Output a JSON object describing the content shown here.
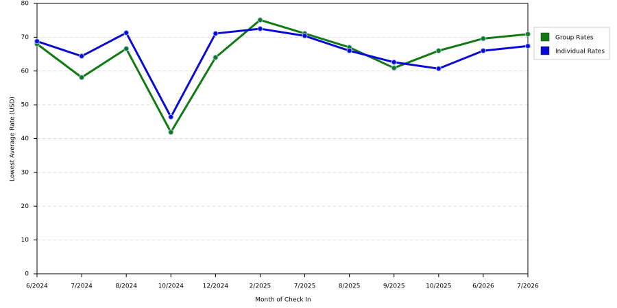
{
  "chart_data": {
    "type": "line",
    "x_label": "Month of Check In",
    "y_label": "Lowest Average Rate (USD)",
    "categories": [
      "6/2024",
      "7/2024",
      "8/2024",
      "10/2024",
      "12/2024",
      "2/2025",
      "7/2025",
      "8/2025",
      "9/2025",
      "10/2025",
      "6/2026",
      "7/2026"
    ],
    "series": [
      {
        "name": "Group Rates",
        "color": "#117a11",
        "values": [
          68.0,
          58.1,
          66.6,
          41.9,
          64.0,
          75.1,
          71.1,
          67.0,
          60.9,
          66.0,
          69.6,
          70.9
        ]
      },
      {
        "name": "Individual Rates",
        "color": "#0a0ad6",
        "values": [
          68.8,
          64.4,
          71.3,
          46.4,
          71.1,
          72.5,
          70.4,
          66.0,
          62.6,
          60.7,
          66.0,
          67.4
        ]
      }
    ],
    "ylim": [
      0,
      80
    ],
    "yticks": [
      0,
      10,
      20,
      30,
      40,
      50,
      60,
      70,
      80
    ],
    "grid": true,
    "legend": "right"
  }
}
